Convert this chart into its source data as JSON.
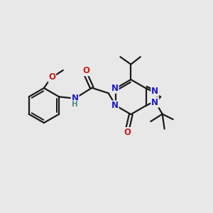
{
  "bg_color": "#e8e8e8",
  "bond_color": "#1a1a1a",
  "bond_width": 1.6,
  "atom_colors": {
    "N": "#1a1acc",
    "O": "#cc1a1a",
    "H": "#4a9090",
    "C": "#1a1a1a"
  },
  "font_size": 8.5,
  "font_size_small": 7.5,
  "figsize": [
    3.0,
    3.0
  ],
  "dpi": 100,
  "xlim": [
    0,
    10
  ],
  "ylim": [
    0,
    10
  ]
}
